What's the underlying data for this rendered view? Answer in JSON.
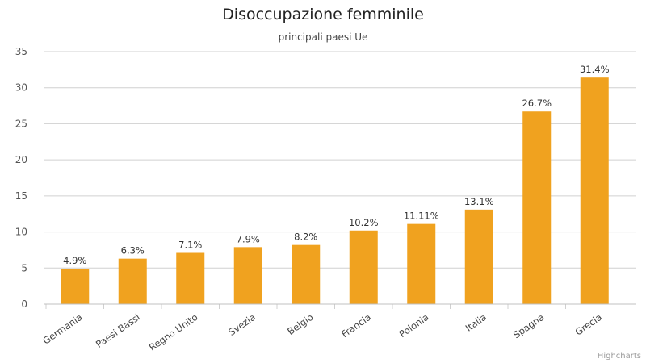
{
  "chart_data": {
    "type": "bar",
    "title": "Disoccupazione femminile",
    "subtitle": "principali paesi Ue",
    "categories": [
      "Germania",
      "Paesi Bassi",
      "Regno Unito",
      "Svezia",
      "Belgio",
      "Francia",
      "Polonia",
      "Italia",
      "Spagna",
      "Grecia"
    ],
    "values": [
      4.9,
      6.3,
      7.1,
      7.9,
      8.2,
      10.2,
      11.11,
      13.1,
      26.7,
      31.4
    ],
    "data_labels": [
      "4.9%",
      "6.3%",
      "7.1%",
      "7.9%",
      "8.2%",
      "10.2%",
      "11.11%",
      "13.1%",
      "26.7%",
      "31.4%"
    ],
    "ylim": [
      0,
      35
    ],
    "yticks": [
      0,
      5,
      10,
      15,
      20,
      25,
      30,
      35
    ],
    "ytick_labels": [
      "0",
      "5",
      "10",
      "15",
      "20",
      "25",
      "30",
      "35"
    ],
    "grid": true,
    "bar_color": "#f0a21f",
    "grid_color": "#d0d0d0",
    "credits": "Highcharts"
  }
}
